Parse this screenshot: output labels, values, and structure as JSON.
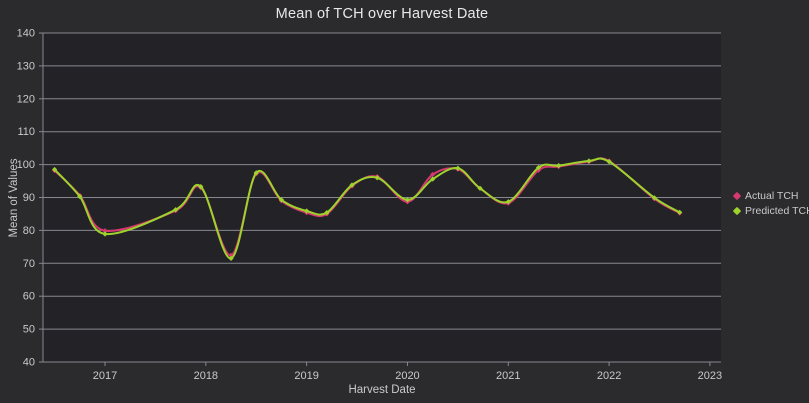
{
  "chart_data": {
    "type": "line",
    "title": "Mean of TCH over Harvest Date",
    "xlabel": "Harvest Date",
    "ylabel": "Mean of Values",
    "xlim": [
      2016.385,
      2023.11
    ],
    "ylim": [
      40,
      140
    ],
    "xticks": [
      2017,
      2018,
      2019,
      2020,
      2021,
      2022,
      2023
    ],
    "yticks": [
      40,
      50,
      60,
      70,
      80,
      90,
      100,
      110,
      120,
      130,
      140
    ],
    "grid": "horizontal",
    "legend_position": "right",
    "marker": "diamond",
    "x": [
      2016.5,
      2016.75,
      2017.0,
      2017.7,
      2017.95,
      2018.25,
      2018.5,
      2018.75,
      2019.0,
      2019.2,
      2019.45,
      2019.7,
      2020.0,
      2020.25,
      2020.5,
      2020.72,
      2021.0,
      2021.3,
      2021.5,
      2021.8,
      2022.0,
      2022.45,
      2022.7
    ],
    "series": [
      {
        "name": "Actual TCH",
        "color": "#d63870",
        "values": [
          98.2,
          90.6,
          79.9,
          86.0,
          93.0,
          72.4,
          97.2,
          89.0,
          85.4,
          85.0,
          93.5,
          96.3,
          88.7,
          97.0,
          98.6,
          92.8,
          88.3,
          98.3,
          99.4,
          100.9,
          101.1,
          89.6,
          85.3
        ]
      },
      {
        "name": "Predicted TCH",
        "color": "#9ed32c",
        "values": [
          98.5,
          90.3,
          78.9,
          86.3,
          93.3,
          71.5,
          97.5,
          89.3,
          85.9,
          85.4,
          93.8,
          96.0,
          89.3,
          95.6,
          98.9,
          92.8,
          88.7,
          99.1,
          99.7,
          101.1,
          100.9,
          89.9,
          85.5
        ]
      }
    ]
  },
  "colors": {
    "background": "#2b2b2e",
    "plot_background": "#232327",
    "gridline": "#87878f",
    "axis_line": "#87878f",
    "tick_text": "#c9c9c9",
    "title_text": "#e8e8e8"
  }
}
